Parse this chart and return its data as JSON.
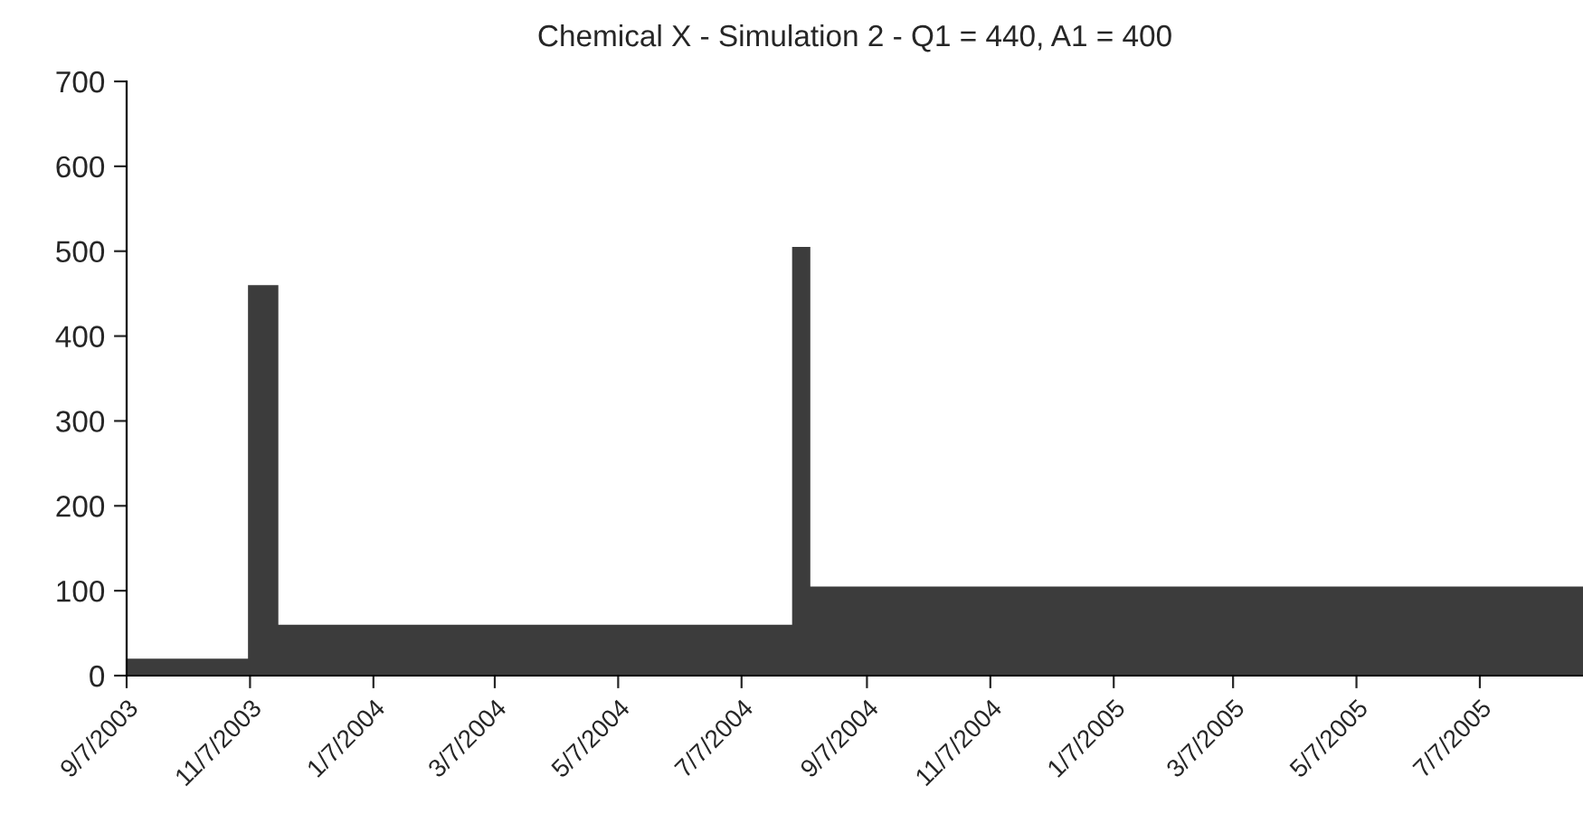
{
  "chart_data": {
    "type": "area",
    "title": "Chemical X - Simulation 2 - Q1 = 440, A1 = 400",
    "x": [
      "2003-09-07",
      "2003-11-06",
      "2003-11-06",
      "2003-11-21",
      "2003-11-21",
      "2004-08-01",
      "2004-08-01",
      "2004-08-10",
      "2004-08-10",
      "2005-08-27"
    ],
    "series": [
      {
        "color": "#3c3c3c",
        "values": [
          20,
          20,
          460,
          460,
          60,
          60,
          505,
          505,
          105,
          105
        ]
      }
    ],
    "xlim": [
      "2003-09-07",
      "2005-08-27"
    ],
    "xticks": [
      {
        "value": "2003-09-07",
        "label": "9/7/2003"
      },
      {
        "value": "2003-11-07",
        "label": "11/7/2003"
      },
      {
        "value": "2004-01-07",
        "label": "1/7/2004"
      },
      {
        "value": "2004-03-07",
        "label": "3/7/2004"
      },
      {
        "value": "2004-05-07",
        "label": "5/7/2004"
      },
      {
        "value": "2004-07-07",
        "label": "7/7/2004"
      },
      {
        "value": "2004-09-07",
        "label": "9/7/2004"
      },
      {
        "value": "2004-11-07",
        "label": "11/7/2004"
      },
      {
        "value": "2005-01-07",
        "label": "1/7/2005"
      },
      {
        "value": "2005-03-07",
        "label": "3/7/2005"
      },
      {
        "value": "2005-05-07",
        "label": "5/7/2005"
      },
      {
        "value": "2005-07-07",
        "label": "7/7/2005"
      }
    ],
    "ylim": [
      0,
      700
    ],
    "yticks": [
      0,
      100,
      200,
      300,
      400,
      500,
      600,
      700
    ],
    "grid": false,
    "legend": false
  }
}
